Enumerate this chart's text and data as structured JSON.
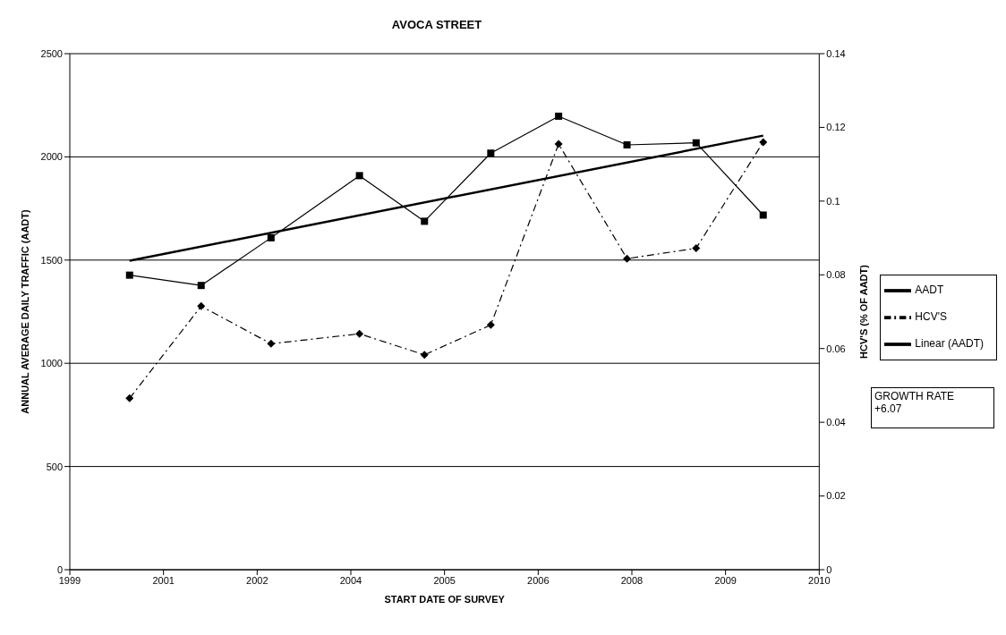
{
  "chart_data": {
    "type": "line",
    "title": "AVOCA STREET",
    "xlabel": "START DATE OF SURVEY",
    "ylabel": "ANNUAL AVERAGE DAILY TRAFFIC (AADT)",
    "y2label": "HCV'S (% OF AADT)",
    "x": [
      "2000-10-27",
      "2001-11-13",
      "2002-11-21",
      "2004-03-07",
      "2005-02-17",
      "2006-02-06",
      "2007-02-03",
      "2008-02-03",
      "2009-02-06",
      "2010-01-30"
    ],
    "series": [
      {
        "name": "AADT",
        "color": "#000000",
        "marker": "square",
        "line_style": "solid",
        "values": [
          1427,
          1377,
          1608,
          1909,
          1688,
          2018,
          2197,
          2058,
          2068,
          1718
        ]
      },
      {
        "name": "HCV'S",
        "color": "#000000",
        "marker": "diamond",
        "line_style": "dashed",
        "axis": "y2",
        "values": [
          0.0465,
          0.0715,
          0.0613,
          0.064,
          0.0583,
          0.0664,
          0.1155,
          0.0844,
          0.0872,
          0.116
        ]
      },
      {
        "name": "Linear (AADT)",
        "color": "#000000",
        "marker": "none",
        "line_style": "solid",
        "x": [
          "2000-10-27",
          "2010-01-30"
        ],
        "values": [
          1497,
          2103
        ]
      }
    ],
    "xlim": [
      "1999-12-13",
      "2010-11-25"
    ],
    "xticks": [
      {
        "value": "1999-12-13",
        "label": "1999"
      },
      {
        "value": "2001-04-26",
        "label": "2001"
      },
      {
        "value": "2002-09-08",
        "label": "2002"
      },
      {
        "value": "2004-01-21",
        "label": "2004"
      },
      {
        "value": "2005-06-04",
        "label": "2005"
      },
      {
        "value": "2006-10-17",
        "label": "2006"
      },
      {
        "value": "2008-02-29",
        "label": "2008"
      },
      {
        "value": "2009-07-13",
        "label": "2009"
      },
      {
        "value": "2010-11-25",
        "label": "2010"
      }
    ],
    "ylim": [
      0,
      2500
    ],
    "yticks": [
      0,
      500,
      1000,
      1500,
      2000,
      2500
    ],
    "y2lim": [
      0,
      0.14
    ],
    "y2ticks": [
      0,
      0.02,
      0.04,
      0.06,
      0.08,
      0.1,
      0.12,
      0.14
    ],
    "grid": "y",
    "legend": "right",
    "annotations": [
      "GROWTH RATE\n+6.07"
    ]
  }
}
